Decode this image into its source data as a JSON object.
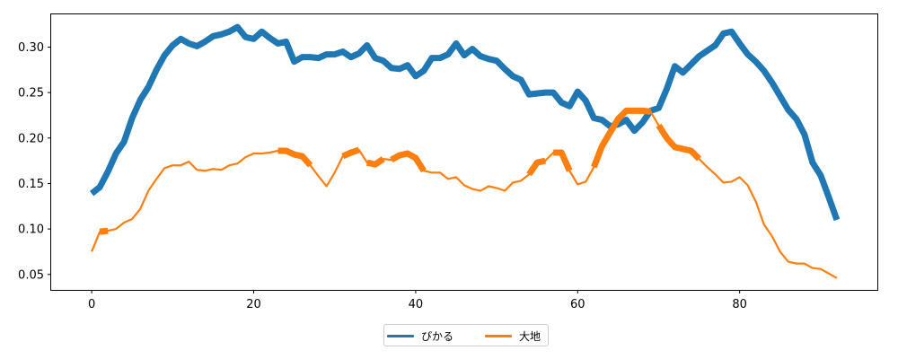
{
  "chart_data": {
    "type": "line",
    "title": "",
    "xlabel": "",
    "ylabel": "",
    "xlim": [
      -5,
      97
    ],
    "ylim": [
      0.033,
      0.336
    ],
    "xticks": [
      0,
      20,
      40,
      60,
      80
    ],
    "yticks": [
      0.05,
      0.1,
      0.15,
      0.2,
      0.25,
      0.3
    ],
    "ytick_labels": [
      "0.05",
      "0.10",
      "0.15",
      "0.20",
      "0.25",
      "0.30"
    ],
    "grid": false,
    "legend_placement": "below-center",
    "series": [
      {
        "name": "ぴかる",
        "color": "#1f77b4",
        "values": [
          0.139,
          0.146,
          0.163,
          0.183,
          0.196,
          0.222,
          0.242,
          0.256,
          0.275,
          0.291,
          0.302,
          0.309,
          0.304,
          0.301,
          0.306,
          0.312,
          0.314,
          0.317,
          0.322,
          0.311,
          0.309,
          0.317,
          0.31,
          0.304,
          0.306,
          0.284,
          0.289,
          0.289,
          0.288,
          0.292,
          0.292,
          0.295,
          0.289,
          0.293,
          0.302,
          0.288,
          0.285,
          0.277,
          0.276,
          0.28,
          0.268,
          0.274,
          0.288,
          0.288,
          0.292,
          0.304,
          0.291,
          0.298,
          0.29,
          0.287,
          0.285,
          0.276,
          0.268,
          0.264,
          0.248,
          0.249,
          0.25,
          0.25,
          0.239,
          0.235,
          0.251,
          0.241,
          0.222,
          0.22,
          0.213,
          0.215,
          0.22,
          0.208,
          0.217,
          0.23,
          0.233,
          0.254,
          0.279,
          0.272,
          0.281,
          0.29,
          0.296,
          0.302,
          0.315,
          0.317,
          0.304,
          0.292,
          0.284,
          0.274,
          0.261,
          0.246,
          0.231,
          0.221,
          0.204,
          0.173,
          0.159,
          0.135,
          0.11
        ]
      },
      {
        "name": "大地",
        "color": "#ff7f0e",
        "values": [
          0.075,
          0.097,
          0.098,
          0.1,
          0.107,
          0.111,
          0.122,
          0.142,
          0.155,
          0.167,
          0.17,
          0.17,
          0.174,
          0.165,
          0.164,
          0.166,
          0.165,
          0.17,
          0.172,
          0.179,
          0.183,
          0.183,
          0.184,
          0.186,
          0.186,
          0.182,
          0.18,
          0.17,
          0.158,
          0.147,
          0.162,
          0.18,
          0.184,
          0.187,
          0.173,
          0.171,
          0.177,
          0.176,
          0.181,
          0.183,
          0.178,
          0.164,
          0.162,
          0.162,
          0.155,
          0.157,
          0.148,
          0.144,
          0.142,
          0.147,
          0.145,
          0.142,
          0.151,
          0.153,
          0.16,
          0.173,
          0.175,
          0.184,
          0.184,
          0.164,
          0.149,
          0.152,
          0.168,
          0.191,
          0.206,
          0.221,
          0.23,
          0.23,
          0.23,
          0.229,
          0.214,
          0.2,
          0.19,
          0.188,
          0.186,
          0.177,
          0.168,
          0.16,
          0.151,
          0.152,
          0.157,
          0.148,
          0.13,
          0.105,
          0.092,
          0.075,
          0.064,
          0.062,
          0.062,
          0.057,
          0.056,
          0.051,
          0.046
        ],
        "thick_segments": [
          [
            1,
            2
          ],
          [
            23,
            27
          ],
          [
            31,
            33
          ],
          [
            34,
            36
          ],
          [
            37,
            41
          ],
          [
            54,
            56
          ],
          [
            57,
            59
          ],
          [
            62,
            69
          ],
          [
            70,
            75
          ]
        ]
      }
    ]
  }
}
